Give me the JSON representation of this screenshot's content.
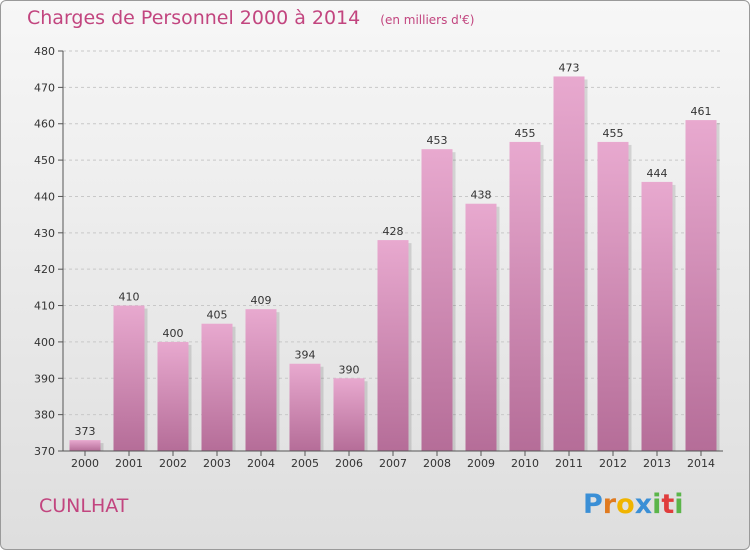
{
  "header": {
    "title": "Charges de Personnel 2000 à 2014",
    "unit": "(en milliers d'€)"
  },
  "commune": "CUNLHAT",
  "logo": {
    "text": "Proxiti",
    "icon": "proxiti-logo-icon"
  },
  "colors": {
    "title": "#c2457f",
    "bar_top": "#e8a9cf",
    "bar_bottom": "#b56d98"
  },
  "chart_data": {
    "type": "bar",
    "title": "Charges de Personnel 2000 à 2014",
    "ylabel": "",
    "xlabel": "",
    "categories": [
      "2000",
      "2001",
      "2002",
      "2003",
      "2004",
      "2005",
      "2006",
      "2007",
      "2008",
      "2009",
      "2010",
      "2011",
      "2012",
      "2013",
      "2014"
    ],
    "values": [
      373,
      410,
      400,
      405,
      409,
      394,
      390,
      428,
      453,
      438,
      455,
      473,
      455,
      444,
      461
    ],
    "ylim": [
      370,
      480
    ],
    "yticks": [
      370,
      380,
      390,
      400,
      410,
      420,
      430,
      440,
      450,
      460,
      470,
      480
    ],
    "grid": true,
    "legend": "none"
  }
}
